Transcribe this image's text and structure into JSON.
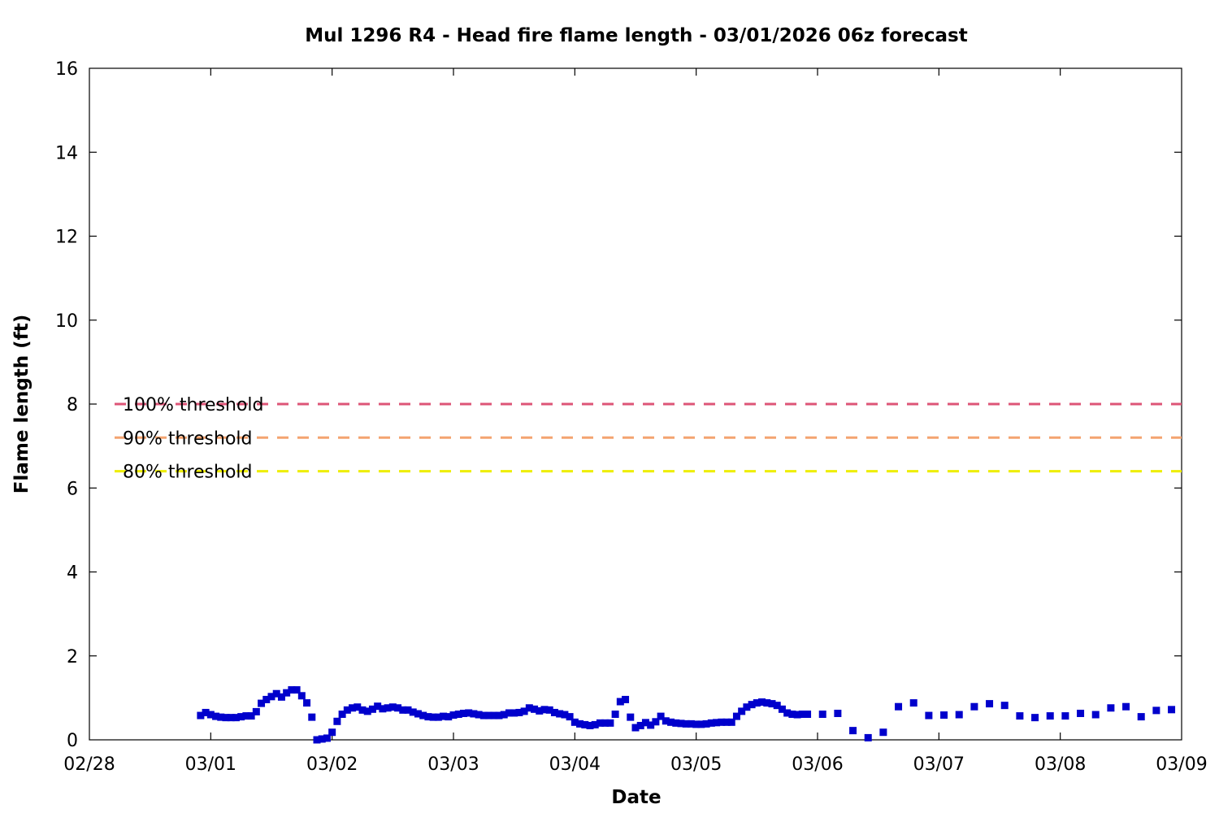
{
  "chart_data": {
    "type": "scatter",
    "title": "Mul 1296 R4 - Head fire flame length - 03/01/2026 06z forecast",
    "xlabel": "Date",
    "ylabel": "Flame length (ft)",
    "x_unit": "date (02/28 – 03/09, 2026)",
    "xlim": [
      "02/28",
      "03/09"
    ],
    "ylim": [
      0,
      16
    ],
    "x_ticks": [
      "02/28",
      "03/01",
      "03/02",
      "03/03",
      "03/04",
      "03/05",
      "03/06",
      "03/07",
      "03/08",
      "03/09"
    ],
    "y_ticks": [
      0,
      2,
      4,
      6,
      8,
      10,
      12,
      14,
      16
    ],
    "grid": false,
    "series_color": "#0000cc",
    "thresholds": [
      {
        "label": "100% threshold",
        "value": 8.0,
        "color": "#dd5577"
      },
      {
        "label": "90% threshold",
        "value": 7.2,
        "color": "#f4a470"
      },
      {
        "label": "80% threshold",
        "value": 6.4,
        "color": "#eeee00"
      }
    ],
    "series": [
      {
        "points": [
          [
            "02/28 22:00",
            0.58
          ],
          [
            "02/28 23:00",
            0.65
          ],
          [
            "03/01 00:00",
            0.6
          ],
          [
            "03/01 01:00",
            0.56
          ],
          [
            "03/01 02:00",
            0.54
          ],
          [
            "03/01 03:00",
            0.53
          ],
          [
            "03/01 04:00",
            0.53
          ],
          [
            "03/01 05:00",
            0.53
          ],
          [
            "03/01 06:00",
            0.55
          ],
          [
            "03/01 07:00",
            0.57
          ],
          [
            "03/01 08:00",
            0.57
          ],
          [
            "03/01 09:00",
            0.67
          ],
          [
            "03/01 10:00",
            0.87
          ],
          [
            "03/01 11:00",
            0.96
          ],
          [
            "03/01 12:00",
            1.03
          ],
          [
            "03/01 13:00",
            1.1
          ],
          [
            "03/01 14:00",
            1.02
          ],
          [
            "03/01 15:00",
            1.12
          ],
          [
            "03/01 16:00",
            1.19
          ],
          [
            "03/01 17:00",
            1.19
          ],
          [
            "03/01 18:00",
            1.05
          ],
          [
            "03/01 19:00",
            0.88
          ],
          [
            "03/01 20:00",
            0.54
          ],
          [
            "03/01 21:00",
            0.0
          ],
          [
            "03/01 22:00",
            0.02
          ],
          [
            "03/01 23:00",
            0.04
          ],
          [
            "03/02 00:00",
            0.18
          ],
          [
            "03/02 01:00",
            0.44
          ],
          [
            "03/02 02:00",
            0.61
          ],
          [
            "03/02 03:00",
            0.71
          ],
          [
            "03/02 04:00",
            0.76
          ],
          [
            "03/02 05:00",
            0.78
          ],
          [
            "03/02 06:00",
            0.71
          ],
          [
            "03/02 07:00",
            0.68
          ],
          [
            "03/02 08:00",
            0.73
          ],
          [
            "03/02 09:00",
            0.8
          ],
          [
            "03/02 10:00",
            0.74
          ],
          [
            "03/02 11:00",
            0.76
          ],
          [
            "03/02 12:00",
            0.78
          ],
          [
            "03/02 13:00",
            0.76
          ],
          [
            "03/02 14:00",
            0.71
          ],
          [
            "03/02 15:00",
            0.71
          ],
          [
            "03/02 16:00",
            0.66
          ],
          [
            "03/02 17:00",
            0.62
          ],
          [
            "03/02 18:00",
            0.58
          ],
          [
            "03/02 19:00",
            0.55
          ],
          [
            "03/02 20:00",
            0.54
          ],
          [
            "03/02 21:00",
            0.54
          ],
          [
            "03/02 22:00",
            0.56
          ],
          [
            "03/02 23:00",
            0.55
          ],
          [
            "03/03 00:00",
            0.59
          ],
          [
            "03/03 01:00",
            0.61
          ],
          [
            "03/03 02:00",
            0.63
          ],
          [
            "03/03 03:00",
            0.64
          ],
          [
            "03/03 04:00",
            0.62
          ],
          [
            "03/03 05:00",
            0.6
          ],
          [
            "03/03 06:00",
            0.58
          ],
          [
            "03/03 07:00",
            0.58
          ],
          [
            "03/03 08:00",
            0.58
          ],
          [
            "03/03 09:00",
            0.58
          ],
          [
            "03/03 10:00",
            0.6
          ],
          [
            "03/03 11:00",
            0.64
          ],
          [
            "03/03 12:00",
            0.64
          ],
          [
            "03/03 13:00",
            0.65
          ],
          [
            "03/03 14:00",
            0.68
          ],
          [
            "03/03 15:00",
            0.76
          ],
          [
            "03/03 16:00",
            0.73
          ],
          [
            "03/03 17:00",
            0.69
          ],
          [
            "03/03 18:00",
            0.72
          ],
          [
            "03/03 19:00",
            0.71
          ],
          [
            "03/03 20:00",
            0.65
          ],
          [
            "03/03 21:00",
            0.62
          ],
          [
            "03/03 22:00",
            0.6
          ],
          [
            "03/03 23:00",
            0.55
          ],
          [
            "03/04 00:00",
            0.42
          ],
          [
            "03/04 01:00",
            0.38
          ],
          [
            "03/04 02:00",
            0.36
          ],
          [
            "03/04 03:00",
            0.34
          ],
          [
            "03/04 04:00",
            0.36
          ],
          [
            "03/04 05:00",
            0.4
          ],
          [
            "03/04 06:00",
            0.4
          ],
          [
            "03/04 07:00",
            0.4
          ],
          [
            "03/04 08:00",
            0.61
          ],
          [
            "03/04 09:00",
            0.91
          ],
          [
            "03/04 10:00",
            0.96
          ],
          [
            "03/04 11:00",
            0.54
          ],
          [
            "03/04 12:00",
            0.29
          ],
          [
            "03/04 13:00",
            0.34
          ],
          [
            "03/04 14:00",
            0.41
          ],
          [
            "03/04 15:00",
            0.35
          ],
          [
            "03/04 16:00",
            0.43
          ],
          [
            "03/04 17:00",
            0.56
          ],
          [
            "03/04 18:00",
            0.45
          ],
          [
            "03/04 19:00",
            0.42
          ],
          [
            "03/04 20:00",
            0.4
          ],
          [
            "03/04 21:00",
            0.39
          ],
          [
            "03/04 22:00",
            0.38
          ],
          [
            "03/04 23:00",
            0.38
          ],
          [
            "03/05 00:00",
            0.37
          ],
          [
            "03/05 01:00",
            0.37
          ],
          [
            "03/05 02:00",
            0.38
          ],
          [
            "03/05 03:00",
            0.4
          ],
          [
            "03/05 04:00",
            0.41
          ],
          [
            "03/05 05:00",
            0.42
          ],
          [
            "03/05 06:00",
            0.42
          ],
          [
            "03/05 07:00",
            0.42
          ],
          [
            "03/05 08:00",
            0.56
          ],
          [
            "03/05 09:00",
            0.68
          ],
          [
            "03/05 10:00",
            0.78
          ],
          [
            "03/05 11:00",
            0.84
          ],
          [
            "03/05 12:00",
            0.88
          ],
          [
            "03/05 13:00",
            0.9
          ],
          [
            "03/05 14:00",
            0.88
          ],
          [
            "03/05 15:00",
            0.86
          ],
          [
            "03/05 16:00",
            0.82
          ],
          [
            "03/05 17:00",
            0.73
          ],
          [
            "03/05 18:00",
            0.64
          ],
          [
            "03/05 19:00",
            0.61
          ],
          [
            "03/05 20:00",
            0.6
          ],
          [
            "03/05 21:00",
            0.61
          ],
          [
            "03/05 22:00",
            0.61
          ],
          [
            "03/06 01:00",
            0.61
          ],
          [
            "03/06 04:00",
            0.63
          ],
          [
            "03/06 07:00",
            0.22
          ],
          [
            "03/06 10:00",
            0.05
          ],
          [
            "03/06 13:00",
            0.18
          ],
          [
            "03/06 16:00",
            0.79
          ],
          [
            "03/06 19:00",
            0.88
          ],
          [
            "03/06 22:00",
            0.58
          ],
          [
            "03/07 01:00",
            0.59
          ],
          [
            "03/07 04:00",
            0.6
          ],
          [
            "03/07 07:00",
            0.79
          ],
          [
            "03/07 10:00",
            0.86
          ],
          [
            "03/07 13:00",
            0.82
          ],
          [
            "03/07 16:00",
            0.57
          ],
          [
            "03/07 19:00",
            0.53
          ],
          [
            "03/07 22:00",
            0.57
          ],
          [
            "03/08 01:00",
            0.57
          ],
          [
            "03/08 04:00",
            0.63
          ],
          [
            "03/08 07:00",
            0.6
          ],
          [
            "03/08 10:00",
            0.76
          ],
          [
            "03/08 13:00",
            0.79
          ],
          [
            "03/08 16:00",
            0.55
          ],
          [
            "03/08 19:00",
            0.7
          ],
          [
            "03/08 22:00",
            0.72
          ]
        ]
      }
    ]
  }
}
